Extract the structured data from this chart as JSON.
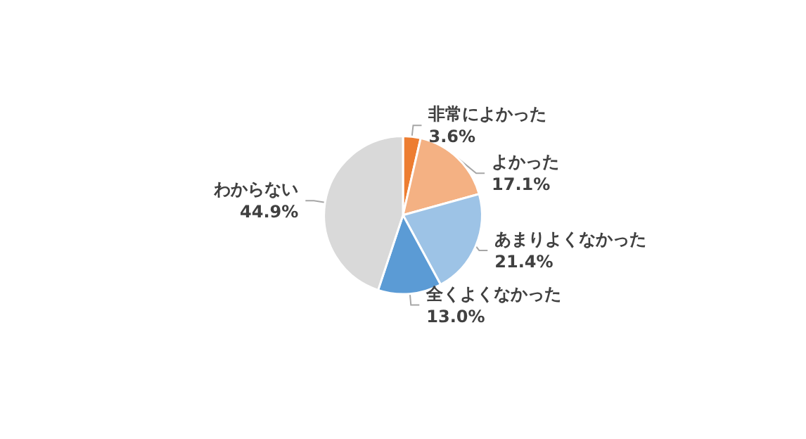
{
  "chart_data": {
    "type": "pie",
    "categories": [
      "非常によかった",
      "よかった",
      "あまりよくなかった",
      "全くよくなかった",
      "わからない"
    ],
    "values": [
      3.6,
      17.1,
      21.4,
      13.0,
      44.9
    ],
    "value_labels": [
      "3.6%",
      "17.1%",
      "21.4%",
      "13.0%",
      "44.9%"
    ],
    "colors": [
      "#ed7d31",
      "#f4b183",
      "#9dc3e6",
      "#5b9bd5",
      "#d9d9d9"
    ],
    "legend": false
  }
}
